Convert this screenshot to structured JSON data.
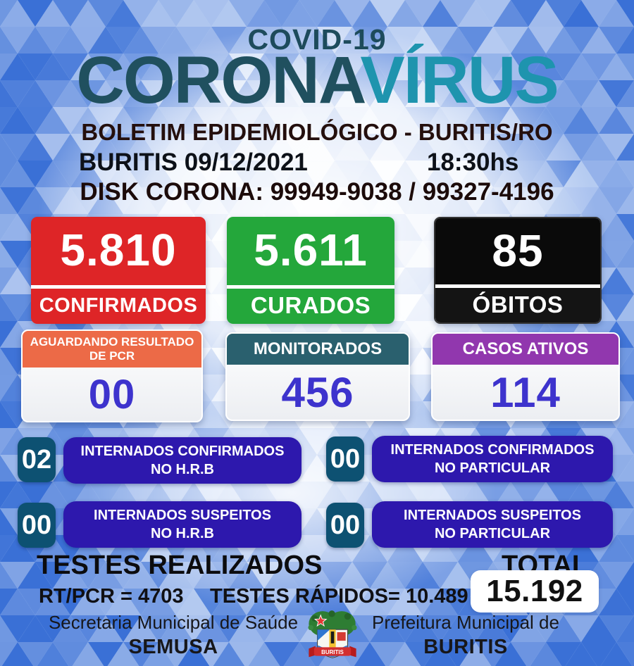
{
  "header": {
    "supertitle": "COVID-19",
    "title_part1": "CORONA",
    "title_part2": "VÍRUS",
    "subtitle": "BOLETIM EPIDEMIOLÓGICO - BURITIS/RO",
    "place_date": "BURITIS 09/12/2021",
    "time": "18:30hs",
    "hotline": "DISK CORONA: 99949-9038 / 99327-4196"
  },
  "stat_cards": [
    {
      "value": "5.810",
      "label": "CONFIRMADOS",
      "color": "#de2527"
    },
    {
      "value": "5.611",
      "label": "CURADOS",
      "color": "#24a73b"
    },
    {
      "value": "85",
      "label": "ÓBITOS",
      "color": "#0a0a0a"
    }
  ],
  "pending_cards": [
    {
      "title": "AGUARDANDO RESULTADO DE PCR",
      "value": "00",
      "color": "#ec6a47"
    },
    {
      "title": "MONITORADOS",
      "value": "456",
      "color": "#2a606e"
    },
    {
      "title": "CASOS ATIVOS",
      "value": "114",
      "color": "#9137ae"
    }
  ],
  "hospitalized": [
    {
      "count": "02",
      "line1": "INTERNADOS CONFIRMADOS",
      "line2": "NO H.R.B"
    },
    {
      "count": "00",
      "line1": "INTERNADOS CONFIRMADOS",
      "line2": "NO PARTICULAR"
    },
    {
      "count": "00",
      "line1": "INTERNADOS SUSPEITOS",
      "line2": "NO H.R.B"
    },
    {
      "count": "00",
      "line1": "INTERNADOS SUSPEITOS",
      "line2": "NO PARTICULAR"
    }
  ],
  "tests": {
    "heading": "TESTES REALIZADOS",
    "total_label": "TOTAL",
    "rt_pcr": "RT/PCR = 4703",
    "rapid": "TESTES RÁPIDOS= 10.489",
    "total_value": "15.192"
  },
  "footer": {
    "left_line1": "Secretaria Municipal de Saúde",
    "left_line2": "SEMUSA",
    "right_line1": "Prefeitura Municipal de",
    "right_line2": "BURITIS",
    "logo_label": "BURITIS"
  },
  "colors": {
    "title_dark_teal": "#20505f",
    "title_cyan": "#1e94ae",
    "confirmed_red": "#de2527",
    "cured_green": "#24a73b",
    "deaths_black": "#0a0a0a",
    "pcr_orange": "#ec6a47",
    "monitored_teal": "#2a606e",
    "active_purple": "#9137ae",
    "number_blue": "#3d33cd",
    "hospital_square_teal": "#0d5172",
    "hospital_pill_indigo": "#2d18ad"
  }
}
